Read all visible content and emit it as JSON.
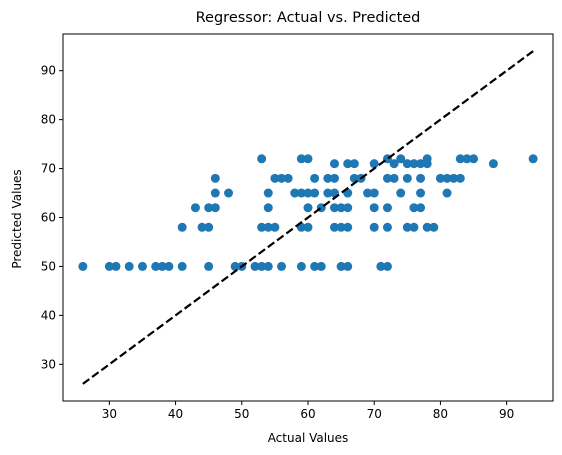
{
  "chart_data": {
    "type": "scatter",
    "title": "Regressor: Actual vs. Predicted",
    "xlabel": "Actual Values",
    "ylabel": "Predicted Values",
    "xlim": [
      23,
      97
    ],
    "ylim": [
      22.5,
      97.5
    ],
    "xticks": [
      30,
      40,
      50,
      60,
      70,
      80,
      90
    ],
    "yticks": [
      30,
      40,
      50,
      60,
      70,
      80,
      90
    ],
    "grid": false,
    "colors": {
      "points": "#1f77b4",
      "reference_line": "#000000"
    },
    "reference_line": {
      "style": "dashed",
      "x": [
        26,
        94
      ],
      "y": [
        26,
        94
      ]
    },
    "series": [
      {
        "points": [
          [
            26,
            50
          ],
          [
            30,
            50
          ],
          [
            31,
            50
          ],
          [
            33,
            50
          ],
          [
            35,
            50
          ],
          [
            37,
            50
          ],
          [
            38,
            50
          ],
          [
            39,
            50
          ],
          [
            41,
            50
          ],
          [
            45,
            50
          ],
          [
            49,
            50
          ],
          [
            50,
            50
          ],
          [
            52,
            50
          ],
          [
            53,
            50
          ],
          [
            54,
            50
          ],
          [
            56,
            50
          ],
          [
            59,
            50
          ],
          [
            61,
            50
          ],
          [
            62,
            50
          ],
          [
            65,
            50
          ],
          [
            66,
            50
          ],
          [
            71,
            50
          ],
          [
            72,
            50
          ],
          [
            41,
            58
          ],
          [
            44,
            58
          ],
          [
            45,
            58
          ],
          [
            53,
            58
          ],
          [
            54,
            58
          ],
          [
            55,
            58
          ],
          [
            59,
            58
          ],
          [
            60,
            58
          ],
          [
            64,
            58
          ],
          [
            65,
            58
          ],
          [
            66,
            58
          ],
          [
            70,
            58
          ],
          [
            72,
            58
          ],
          [
            75,
            58
          ],
          [
            76,
            58
          ],
          [
            78,
            58
          ],
          [
            79,
            58
          ],
          [
            43,
            62
          ],
          [
            45,
            62
          ],
          [
            46,
            62
          ],
          [
            54,
            62
          ],
          [
            60,
            62
          ],
          [
            62,
            62
          ],
          [
            64,
            62
          ],
          [
            65,
            62
          ],
          [
            66,
            62
          ],
          [
            70,
            62
          ],
          [
            72,
            62
          ],
          [
            76,
            62
          ],
          [
            77,
            62
          ],
          [
            46,
            65
          ],
          [
            48,
            65
          ],
          [
            54,
            65
          ],
          [
            58,
            65
          ],
          [
            59,
            65
          ],
          [
            60,
            65
          ],
          [
            61,
            65
          ],
          [
            63,
            65
          ],
          [
            64,
            65
          ],
          [
            66,
            65
          ],
          [
            69,
            65
          ],
          [
            70,
            65
          ],
          [
            74,
            65
          ],
          [
            77,
            65
          ],
          [
            81,
            65
          ],
          [
            46,
            68
          ],
          [
            55,
            68
          ],
          [
            56,
            68
          ],
          [
            57,
            68
          ],
          [
            61,
            68
          ],
          [
            63,
            68
          ],
          [
            64,
            68
          ],
          [
            67,
            68
          ],
          [
            68,
            68
          ],
          [
            72,
            68
          ],
          [
            73,
            68
          ],
          [
            75,
            68
          ],
          [
            77,
            68
          ],
          [
            80,
            68
          ],
          [
            81,
            68
          ],
          [
            82,
            68
          ],
          [
            83,
            68
          ],
          [
            64,
            71
          ],
          [
            66,
            71
          ],
          [
            67,
            71
          ],
          [
            70,
            71
          ],
          [
            73,
            71
          ],
          [
            75,
            71
          ],
          [
            76,
            71
          ],
          [
            77,
            71
          ],
          [
            78,
            71
          ],
          [
            88,
            71
          ],
          [
            53,
            72
          ],
          [
            59,
            72
          ],
          [
            60,
            72
          ],
          [
            72,
            72
          ],
          [
            74,
            72
          ],
          [
            78,
            72
          ],
          [
            83,
            72
          ],
          [
            84,
            72
          ],
          [
            85,
            72
          ],
          [
            94,
            72
          ]
        ]
      }
    ]
  }
}
